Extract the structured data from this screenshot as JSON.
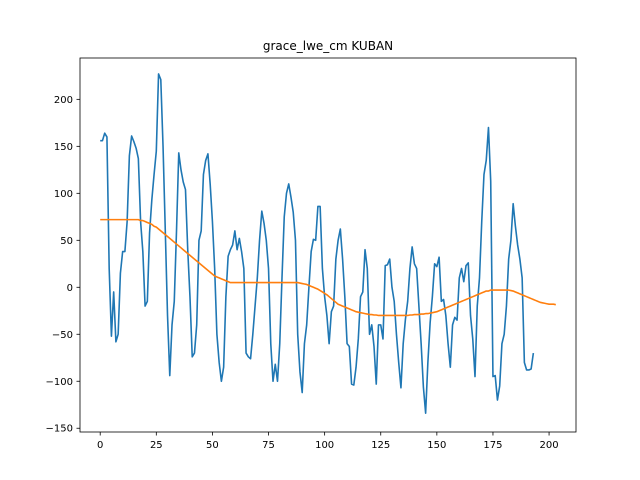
{
  "chart_data": {
    "type": "line",
    "title": "grace_lwe_cm KUBAN",
    "xlabel": "",
    "ylabel": "",
    "xlim": [
      -9,
      212
    ],
    "ylim": [
      -154,
      244
    ],
    "xticks": [
      0,
      25,
      50,
      75,
      100,
      125,
      150,
      175,
      200
    ],
    "yticks": [
      -150,
      -100,
      -50,
      0,
      50,
      100,
      150,
      200
    ],
    "grid": false,
    "series": [
      {
        "color": "#1f77b4",
        "values": [
          156,
          156,
          164,
          160,
          20,
          -52,
          -5,
          -58,
          -50,
          15,
          38,
          38,
          70,
          140,
          161,
          155,
          148,
          137,
          70,
          38,
          -20,
          -15,
          58,
          93,
          120,
          145,
          227,
          221,
          150,
          60,
          -30,
          -94,
          -40,
          -15,
          60,
          143,
          125,
          112,
          104,
          40,
          -10,
          -74,
          -70,
          -40,
          50,
          60,
          120,
          135,
          142,
          110,
          70,
          20,
          -50,
          -80,
          -100,
          -85,
          -10,
          33,
          40,
          45,
          60,
          40,
          52,
          38,
          20,
          -70,
          -74,
          -76,
          -50,
          -20,
          10,
          50,
          81,
          68,
          50,
          20,
          -60,
          -100,
          -82,
          -100,
          -60,
          10,
          75,
          100,
          110,
          96,
          80,
          50,
          -50,
          -90,
          -112,
          -60,
          -40,
          0,
          38,
          51,
          50,
          86,
          86,
          20,
          -10,
          -30,
          -60,
          -26,
          -20,
          30,
          50,
          62,
          30,
          -10,
          -60,
          -63,
          -103,
          -104,
          -85,
          -55,
          -10,
          -5,
          40,
          20,
          -50,
          -40,
          -63,
          -103,
          -40,
          -40,
          -55,
          23,
          24,
          30,
          0,
          -15,
          -50,
          -80,
          -107,
          -60,
          -34,
          -15,
          20,
          43,
          25,
          20,
          -20,
          -60,
          -106,
          -134,
          -80,
          -38,
          -10,
          25,
          22,
          32,
          -15,
          -13,
          -30,
          -60,
          -85,
          -40,
          -32,
          -35,
          10,
          20,
          6,
          23,
          26,
          -30,
          -55,
          -95,
          -20,
          10,
          70,
          120,
          135,
          170,
          113,
          -95,
          -94,
          -120,
          -105,
          -60,
          -50,
          -20,
          30,
          50,
          89,
          65,
          45,
          30,
          10,
          -80,
          -88,
          -88,
          -87,
          -70
        ]
      },
      {
        "color": "#ff7f0e",
        "values": [
          72,
          72,
          72,
          72,
          72,
          72,
          72,
          72,
          72,
          72,
          72,
          72,
          72,
          72,
          72,
          72,
          72,
          72,
          71,
          71,
          70,
          69,
          68,
          67,
          65,
          64,
          62,
          60,
          58,
          56,
          54,
          52,
          50,
          48,
          46,
          44,
          42,
          40,
          38,
          36,
          34,
          32,
          30,
          28,
          26,
          24,
          22,
          20,
          18,
          16,
          14,
          12,
          11,
          10,
          9,
          8,
          7,
          6,
          5,
          5,
          5,
          5,
          5,
          5,
          5,
          5,
          5,
          5,
          5,
          5,
          5,
          5,
          5,
          5,
          5,
          5,
          5,
          5,
          5,
          5,
          5,
          5,
          5,
          5,
          5,
          5,
          5,
          5,
          5,
          4.5,
          4,
          3.5,
          3,
          2,
          1,
          0,
          -1,
          -2,
          -3.5,
          -5,
          -6.5,
          -8,
          -10,
          -12,
          -14,
          -16,
          -18,
          -19,
          -20,
          -21,
          -22,
          -23,
          -24,
          -25,
          -26,
          -26.5,
          -27,
          -27.5,
          -28,
          -28.5,
          -29,
          -29,
          -29.5,
          -29.5,
          -30,
          -30,
          -30,
          -30,
          -30,
          -30,
          -30,
          -30,
          -30,
          -30,
          -30,
          -30,
          -30,
          -30,
          -29.5,
          -29.5,
          -29,
          -29,
          -29,
          -28.5,
          -28.5,
          -28,
          -28,
          -27.5,
          -27,
          -26.5,
          -26,
          -25,
          -24,
          -23,
          -22,
          -21,
          -20,
          -19,
          -18,
          -17,
          -16,
          -15,
          -14,
          -13,
          -12,
          -11,
          -10,
          -9,
          -8,
          -7,
          -6,
          -5,
          -4,
          -4,
          -3,
          -3,
          -3,
          -3,
          -3,
          -3,
          -3,
          -3,
          -3,
          -3.5,
          -4,
          -5,
          -6,
          -7,
          -8,
          -9,
          -10,
          -11,
          -12,
          -13,
          -14,
          -15,
          -16,
          -16.5,
          -17,
          -17.5,
          -18,
          -18,
          -18,
          -18.5
        ]
      }
    ]
  }
}
